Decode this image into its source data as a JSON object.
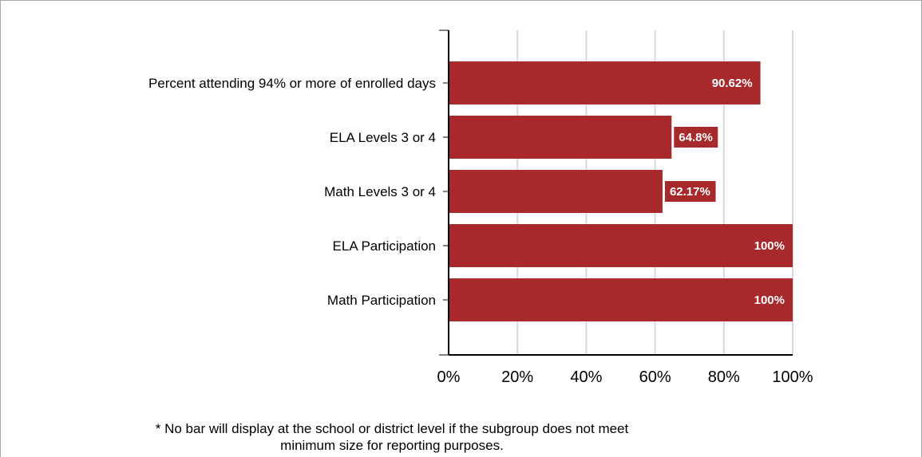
{
  "chart_data": {
    "type": "bar",
    "orientation": "horizontal",
    "categories": [
      "Percent attending 94% or more of enrolled days",
      "ELA Levels 3 or 4",
      "Math Levels 3 or 4",
      "ELA Participation",
      "Math Participation"
    ],
    "values": [
      90.62,
      64.8,
      62.17,
      100,
      100
    ],
    "value_labels": [
      "90.62%",
      "64.8%",
      "62.17%",
      "100%",
      "100%"
    ],
    "xlim": [
      0,
      100
    ],
    "xticks": [
      0,
      20,
      40,
      60,
      80,
      100
    ],
    "xtick_labels": [
      "0%",
      "20%",
      "40%",
      "60%",
      "80%",
      "100%"
    ],
    "grid": true,
    "bar_color": "#a8292b",
    "grid_color": "#d9d9d9",
    "label_color": "#ffffff"
  },
  "footnote": {
    "line1": "* No bar will display at the school or district level if the subgroup does not meet",
    "line2": "minimum size for reporting purposes."
  }
}
